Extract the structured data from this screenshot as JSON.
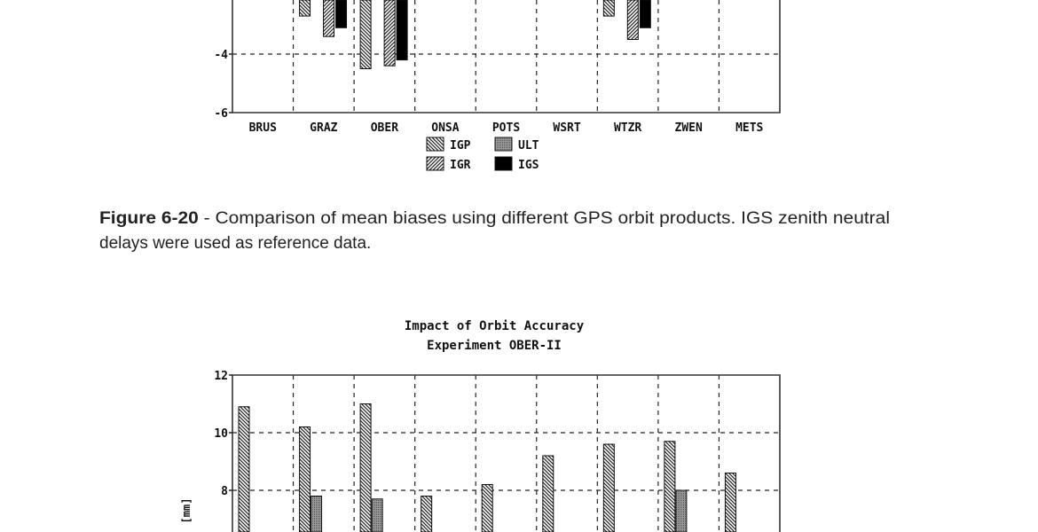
{
  "caption": {
    "figure_label": "Figure 6-20",
    "line1": " - Comparison of mean biases using different GPS orbit products. IGS zenith neutral",
    "line2": "delays were used as reference data."
  },
  "colors": {
    "IGP": "#555555",
    "IGR": "#555555",
    "ULT": "#888888",
    "IGS": "#000000"
  },
  "chart_data": [
    {
      "type": "bar",
      "title": "",
      "xlabel": "",
      "ylabel": "",
      "ylim": [
        -6,
        -2
      ],
      "yticks": [
        "-2",
        "-4",
        "-6"
      ],
      "grid": true,
      "categories": [
        "BRUS",
        "GRAZ",
        "OBER",
        "ONSA",
        "POTS",
        "WSRT",
        "WTZR",
        "ZWEN",
        "METS"
      ],
      "legend": {
        "placement": "bottom-center",
        "entries": [
          "IGP",
          "ULT",
          "IGR",
          "IGS"
        ]
      },
      "series": [
        {
          "name": "IGP",
          "values": [
            null,
            -2.7,
            -4.5,
            null,
            null,
            null,
            -2.7,
            null,
            null
          ]
        },
        {
          "name": "ULT",
          "values": [
            null,
            null,
            null,
            null,
            null,
            null,
            null,
            null,
            null
          ]
        },
        {
          "name": "IGR",
          "values": [
            null,
            -3.4,
            -4.4,
            null,
            null,
            null,
            -3.5,
            null,
            null
          ]
        },
        {
          "name": "IGS",
          "values": [
            null,
            -3.1,
            -4.2,
            null,
            null,
            null,
            -3.1,
            null,
            null
          ]
        }
      ]
    },
    {
      "type": "bar",
      "title": "Impact of Orbit Accuracy",
      "subtitle": "Experiment OBER-II",
      "xlabel": "",
      "ylabel": "[mm]",
      "ylim": [
        7,
        12
      ],
      "yticks": [
        "12",
        "10",
        "8"
      ],
      "grid": true,
      "categories": [
        "BRUS",
        "GRAZ",
        "OBER",
        "ONSA",
        "POTS",
        "WSRT",
        "WTZR",
        "ZWEN",
        "METS"
      ],
      "series": [
        {
          "name": "IGP",
          "values": [
            10.9,
            10.2,
            11.0,
            7.8,
            8.2,
            9.2,
            9.6,
            9.7,
            8.6
          ]
        },
        {
          "name": "ULT",
          "values": [
            null,
            7.8,
            7.7,
            null,
            null,
            null,
            null,
            8.0,
            null
          ]
        }
      ]
    }
  ]
}
